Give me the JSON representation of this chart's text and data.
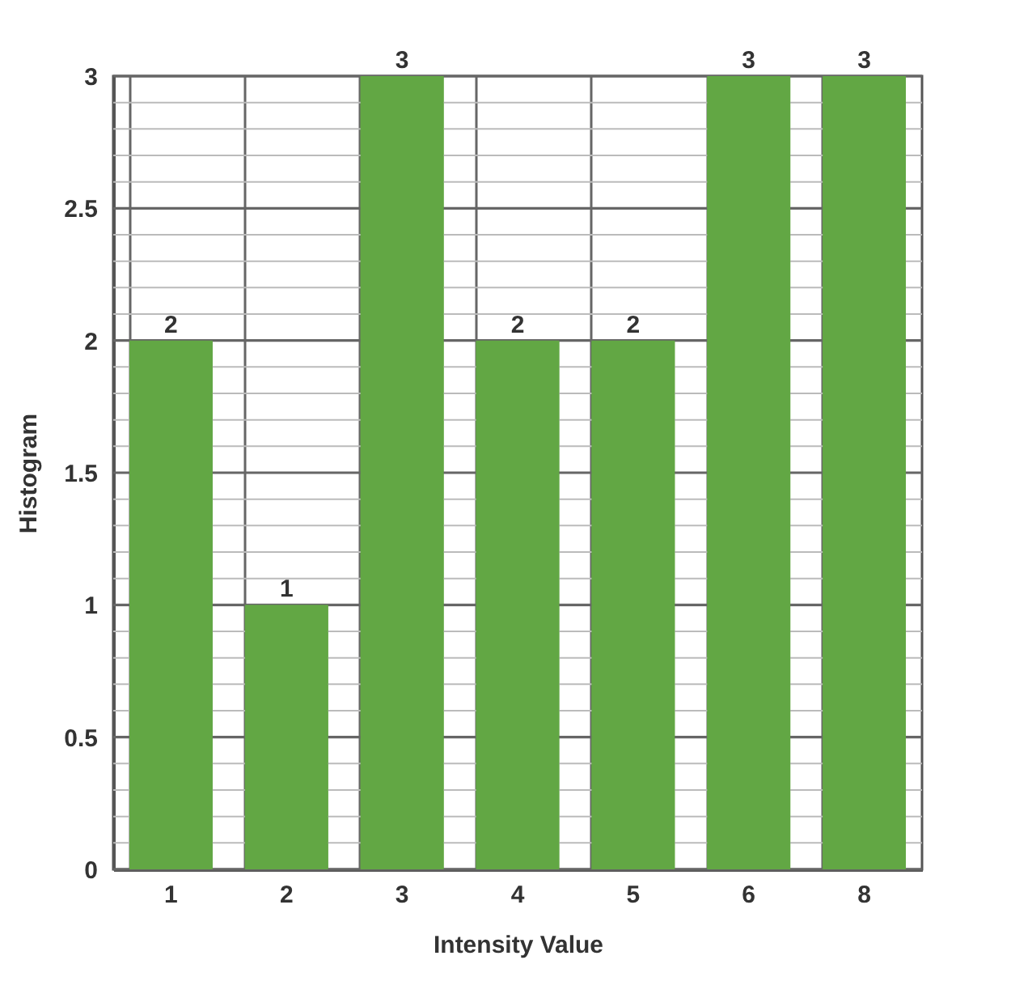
{
  "chart_data": {
    "type": "bar",
    "xlabel": "Intensity Value",
    "ylabel": "Histogram",
    "categories": [
      "1",
      "2",
      "3",
      "4",
      "5",
      "6",
      "8"
    ],
    "values": [
      2,
      1,
      3,
      2,
      2,
      3,
      3
    ],
    "color": "#62a744",
    "data_labels": true,
    "grid": true,
    "ylim": [
      0,
      3
    ],
    "yticks": [
      0,
      {
        "value": 0.1,
        "label": null
      },
      {
        "value": 0.2,
        "label": null
      },
      {
        "value": 0.3,
        "label": null
      },
      {
        "value": 0.4,
        "label": null
      },
      0.5,
      {
        "value": 0.6,
        "label": null
      },
      {
        "value": 0.7,
        "label": null
      },
      {
        "value": 0.8,
        "label": null
      },
      {
        "value": 0.9,
        "label": null
      },
      1,
      {
        "value": 1.1,
        "label": null
      },
      {
        "value": 1.2,
        "label": null
      },
      {
        "value": 1.3,
        "label": null
      },
      {
        "value": 1.4,
        "label": null
      },
      1.5,
      {
        "value": 1.6,
        "label": null
      },
      {
        "value": 1.7,
        "label": null
      },
      {
        "value": 1.8,
        "label": null
      },
      {
        "value": 1.9,
        "label": null
      },
      2,
      {
        "value": 2.1,
        "label": null
      },
      {
        "value": 2.2,
        "label": null
      },
      {
        "value": 2.3,
        "label": null
      },
      {
        "value": 2.4,
        "label": null
      },
      2.5,
      {
        "value": 2.6,
        "label": null
      },
      {
        "value": 2.7,
        "label": null
      },
      {
        "value": 2.8,
        "label": null
      },
      {
        "value": 2.9,
        "label": null
      },
      3
    ]
  }
}
